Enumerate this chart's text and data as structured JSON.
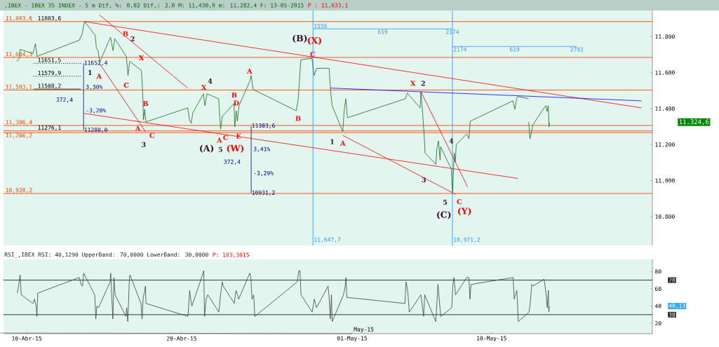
{
  "chart_data": [
    {
      "type": "line",
      "title": ",IBEX - IBEX 35 INDEX - 5 m Dif, %: 0,02 Dif,: 2,0 M: 11,430,9 m: 11,282,4 F: 13-05-2015",
      "subtitle": "P : 11,033,1",
      "xlim": [
        "2015-04-08T12:00",
        "2015-05-20T09:00"
      ],
      "ylim": [
        10640,
        11945
      ],
      "tick_labels": "y",
      "yticks": [
        {
          "value": 10800,
          "label": "10.800"
        },
        {
          "value": 11000,
          "label": "11.000"
        },
        {
          "value": 11200,
          "label": "11.200"
        },
        {
          "value": 11400,
          "label": "11.400"
        },
        {
          "value": 11600,
          "label": "11.600"
        },
        {
          "value": 11800,
          "label": "11.800"
        }
      ],
      "series": [
        {
          "color": "#1b6b1b",
          "x": [
            "2015-04-09T09:00",
            "2015-04-09T12:50",
            "2015-04-09T13:40",
            "2015-04-10T09:30",
            "2015-04-10T13:25",
            "2015-04-10T15:55",
            "2015-04-13T09:15",
            "2015-04-13T13:55",
            "2015-04-13T17:25",
            "2015-04-14T10:00",
            "2015-04-14T11:50",
            "2015-04-14T14:25",
            "2015-04-14T17:00",
            "2015-04-15T09:45",
            "2015-04-15T13:40",
            "2015-04-15T16:15",
            "2015-04-16T10:15",
            "2015-04-16T12:50",
            "2015-04-16T15:30",
            "2015-04-17T09:30",
            "2015-04-17T11:20",
            "2015-04-17T12:50",
            "2015-04-17T14:40",
            "2015-04-17T16:30",
            "2015-04-20T09:30",
            "2015-04-20T12:05",
            "2015-04-20T14:40",
            "2015-04-20T17:15",
            "2015-04-21T09:45",
            "2015-04-21T11:50",
            "2015-04-21T15:10",
            "2015-04-22T09:15",
            "2015-04-22T11:00",
            "2015-04-22T12:20",
            "2015-04-22T14:55",
            "2015-04-23T09:00",
            "2015-04-23T10:15",
            "2015-04-23T12:20",
            "2015-04-23T14:10",
            "2015-04-23T16:45",
            "2015-04-24T09:30",
            "2015-04-24T11:35",
            "2015-04-24T14:40",
            "2015-04-27T09:30",
            "2015-04-27T12:35",
            "2015-04-27T14:25",
            "2015-04-27T16:30",
            "2015-04-28T09:30",
            "2015-04-28T10:30",
            "2015-04-28T13:05",
            "2015-04-28T17:00",
            "2015-04-29T12:20",
            "2015-04-29T14:25",
            "2015-04-29T17:00",
            "2015-04-30T09:30",
            "2015-04-30T11:35",
            "2015-04-30T14:10",
            "2015-04-30T16:45",
            "2015-05-04T10:45",
            "2015-05-04T13:25",
            "2015-05-05T09:15",
            "2015-05-05T10:30",
            "2015-05-05T13:05",
            "2015-05-05T15:10",
            "2015-05-05T17:00",
            "2015-05-06T09:45",
            "2015-05-06T11:20",
            "2015-05-06T13:40",
            "2015-05-06T16:15",
            "2015-05-06T17:00",
            "2015-05-07T09:45",
            "2015-05-07T11:00",
            "2015-05-07T11:50",
            "2015-05-07T12:20",
            "2015-05-07T14:10",
            "2015-05-07T15:45",
            "2015-05-07T17:15",
            "2015-05-08T09:30",
            "2015-05-08T12:50",
            "2015-05-08T14:55",
            "2015-05-11T09:00",
            "2015-05-11T12:05",
            "2015-05-11T14:40",
            "2015-05-11T16:45",
            "2015-05-12T09:15",
            "2015-05-12T09:25",
            "2015-05-12T09:30",
            "2015-05-12T11:20",
            "2015-05-12T13:55",
            "2015-05-12T16:00",
            "2015-05-13T09:15",
            "2015-05-13T11:50",
            "2015-05-13T13:55",
            "2015-05-13T15:45",
            "2015-05-13T17:00",
            "2015-05-13T17:30"
          ],
          "values": [
            11663,
            11682,
            11729,
            11706,
            11761,
            11690,
            11780,
            11816,
            11883.6,
            11808,
            11737,
            11722,
            11659,
            11796,
            11722,
            11788,
            11690,
            11584,
            11663,
            11612,
            11506,
            11337,
            11396,
            11326,
            11404,
            11337,
            11318,
            11377,
            11482,
            11416,
            11482,
            11455,
            11349,
            11286,
            11357,
            11428,
            11298,
            11388,
            11330,
            11416,
            11553,
            11584,
            11506,
            11388,
            11455,
            11561,
            11671,
            11680,
            11659,
            11584,
            11624,
            11624,
            11506,
            11416,
            11271,
            11388,
            11455,
            11349,
            11455,
            11486,
            11404,
            11494,
            11377,
            11271,
            11153,
            11090,
            11181,
            11220,
            11114,
            11188,
            11063,
            10957,
            10934,
            11012,
            11153,
            11102,
            11200,
            11259,
            11232,
            11330,
            11443,
            11396,
            11455,
            11467,
            11455,
            null,
            11326,
            11232,
            11271,
            11310,
            11404,
            11416,
            11384,
            11416,
            11298,
            11324.6
          ]
        },
        {
          "color": "#ff0000",
          "x": [
            "2015-04-13T17:25",
            "2015-05-19T16:15"
          ],
          "values": [
            11883,
            11404
          ]
        },
        {
          "color": "#ff0000",
          "x": [
            "2015-04-13T17:00",
            "2015-05-11T16:30"
          ],
          "values": [
            11373,
            11012
          ]
        },
        {
          "color": "#ff0000",
          "x": [
            "2015-04-14T16:30",
            "2015-04-20T09:15"
          ],
          "values": [
            11921,
            11514
          ]
        },
        {
          "color": "#ff0000",
          "x": [
            "2015-04-14T16:30",
            "2015-04-17T16:00"
          ],
          "values": [
            11651,
            11271
          ]
        },
        {
          "color": "#ff0000",
          "x": [
            "2015-04-30T09:30",
            "2015-05-07T17:00"
          ],
          "values": [
            11251,
            10922
          ]
        },
        {
          "color": "#ff0000",
          "x": [
            "2015-05-05T10:30",
            "2015-05-08T10:45"
          ],
          "values": [
            11494,
            10965
          ]
        },
        {
          "color": "#0000ff",
          "x": [
            "2015-04-29T14:25",
            "2015-05-19T16:00"
          ],
          "values": [
            11514,
            11443
          ]
        },
        {
          "color": "#000080",
          "x": [
            "2015-04-13T16:00",
            "2015-04-13T16:00"
          ],
          "values": [
            11652.4,
            11280.0
          ]
        },
        {
          "color": "#000080",
          "x": [
            "2015-04-24T11:35",
            "2015-04-24T11:35"
          ],
          "values": [
            11303.6,
            10931.2
          ]
        },
        {
          "color": "#3399ff",
          "x": [
            "2015-04-28T11:20",
            "2015-05-07T11:20"
          ],
          "values": [
            11843,
            11843
          ]
        },
        {
          "color": "#3399ff",
          "x": [
            "2015-05-07T11:20",
            "2015-05-15T11:50"
          ],
          "values": [
            11745,
            11745
          ]
        },
        {
          "color": "#000000",
          "line_style": "dotted",
          "x": [
            "2015-04-10T10:15",
            "2015-04-13T12:00"
          ],
          "values": [
            11651.5,
            11651.5
          ]
        },
        {
          "color": "#000000",
          "line_style": "dotted",
          "x": [
            "2015-04-10T10:15",
            "2015-04-13T12:00"
          ],
          "values": [
            11579.9,
            11579.9
          ]
        },
        {
          "color": "#000000",
          "x": [
            "2015-04-10T10:15",
            "2015-04-13T12:00"
          ],
          "values": [
            11508.2,
            11508.2
          ]
        }
      ],
      "ref_lines": [
        {
          "axis": "y",
          "value": 11883.6,
          "label": "11,883,6",
          "color": "#ff4400"
        },
        {
          "axis": "y",
          "value": 11684.3,
          "label": "11,684,3",
          "color": "#ff4400"
        },
        {
          "axis": "y",
          "value": 11503.1,
          "label": "11,503,1",
          "color": "#ff4400"
        },
        {
          "axis": "y",
          "value": 11306.4,
          "label": "11,306,4",
          "color": "#ff4400"
        },
        {
          "axis": "y",
          "value": 11276.1,
          "label": null,
          "color": "#ff4400"
        },
        {
          "axis": "y",
          "value": 11266.2,
          "label": "11,266,2",
          "color": "#ff4400"
        },
        {
          "axis": "y",
          "value": 10928.2,
          "label": "10,928,2",
          "color": "#ff4400"
        },
        {
          "axis": "x",
          "value": "2015-04-28T11:20",
          "label": "11,647,7",
          "color": "#3399ff"
        },
        {
          "axis": "x",
          "value": "2015-05-07T11:20",
          "label": "10,971,2",
          "color": "#3399ff"
        }
      ],
      "annotations": [
        "11.324,6",
        {
          "text": "11883,6",
          "x": "2015-04-10T12:50",
          "y": 11883.6
        },
        {
          "text": "11651,5",
          "x": "2015-04-10T12:50",
          "y": 11651.5
        },
        {
          "text": "11579,9",
          "x": "2015-04-10T12:50",
          "y": 11579.9
        },
        {
          "text": "11508,2",
          "x": "2015-04-10T12:50",
          "y": 11508.2
        },
        {
          "text": "11276,1",
          "x": "2015-04-10T12:50",
          "y": 11276.1
        },
        {
          "text": "11652,4",
          "x": "2015-04-13T16:00",
          "y": 11652.4
        },
        {
          "text": "11280,0",
          "x": "2015-04-13T16:00",
          "y": 11280.0
        },
        "3,30%",
        "-3,20%",
        "372,4",
        {
          "text": "11303,6",
          "x": "2015-04-24T11:35",
          "y": 11303.6
        },
        {
          "text": "10931,2",
          "x": "2015-04-24T11:35",
          "y": 10931.2
        },
        "3,41%",
        "-3,29%",
        "372,4",
        "1556",
        "619",
        "2174",
        "2174",
        "619",
        "2792",
        "B",
        "X",
        "A",
        "C",
        "B",
        "A",
        "C",
        "X",
        "A",
        "(W)",
        "B",
        "D",
        "C",
        "E",
        "A",
        "B",
        "C",
        "(X)",
        "A",
        "X",
        "C",
        "(Y)",
        "2",
        "1",
        "3",
        "4",
        "(A)",
        "5",
        "(B)",
        "1",
        "2",
        "4",
        "3",
        "5",
        "(C)"
      ]
    },
    {
      "type": "line",
      "title": "RSI_,IBEX RSI: 40,1290 UpperBand: 70,0000 LowerBand: 30,0000",
      "subtitle": "P: 183,3015",
      "xlim": [
        "2015-04-08T12:00",
        "2015-05-20T09:00"
      ],
      "ylim": [
        8,
        94
      ],
      "xticks": [
        {
          "value": "2015-04-10",
          "label": "10-Abr-15"
        },
        {
          "value": "2015-04-20",
          "label": "20-Abr-15"
        },
        {
          "value": "2015-05-01",
          "label": "01-May-15"
        },
        {
          "value": "2015-05-10",
          "label": "10-May-15"
        }
      ],
      "yticks": [
        20,
        40,
        60,
        80
      ],
      "series": [
        {
          "color": "#404040",
          "x": [
            "2015-04-09T09:15",
            "2015-04-09T11:20",
            "2015-04-09T13:00",
            "2015-04-09T13:45",
            "2015-04-09T15:30",
            "2015-04-10T09:30",
            "2015-04-10T12:05",
            "2015-04-10T14:30",
            "2015-04-10T15:45",
            "2015-04-10T17:05",
            "2015-04-13T09:25",
            "2015-04-13T12:00",
            "2015-04-13T14:25",
            "2015-04-13T16:10",
            "2015-04-14T09:20",
            "2015-04-14T11:00",
            "2015-04-14T12:40",
            "2015-04-14T15:10",
            "2015-04-15T09:15",
            "2015-04-15T10:05",
            "2015-04-15T11:45",
            "2015-04-15T13:25",
            "2015-04-15T15:05",
            "2015-04-15T16:50",
            "2015-04-16T09:30",
            "2015-04-16T10:45",
            "2015-04-16T12:30",
            "2015-04-16T15:00",
            "2015-04-16T15:55",
            "2015-04-17T09:00",
            "2015-04-17T10:40",
            "2015-04-17T12:25",
            "2015-04-17T14:05",
            "2015-04-17T15:50",
            "2015-04-17T16:40",
            "2015-04-20T09:45",
            "2015-04-20T12:20",
            "2015-04-20T14:00",
            "2015-04-20T15:45",
            "2015-04-21T09:10",
            "2015-04-21T10:10",
            "2015-04-21T11:25",
            "2015-04-21T13:55",
            "2015-04-21T16:25",
            "2015-04-22T09:35",
            "2015-04-22T12:10",
            "2015-04-22T14:55",
            "2015-04-22T16:20",
            "2015-04-23T09:30",
            "2015-04-23T12:05",
            "2015-04-23T14:30",
            "2015-04-23T16:15",
            "2015-04-24T09:25",
            "2015-04-24T11:10",
            "2015-04-24T12:50",
            "2015-04-24T15:30",
            "2015-04-24T17:20",
            "2015-04-27T11:00",
            "2015-04-27T13:30",
            "2015-04-27T15:10",
            "2015-04-27T16:55",
            "2015-04-28T10:05",
            "2015-04-28T13:25",
            "2015-04-28T16:50",
            "2015-04-29T10:45",
            "2015-04-29T12:30",
            "2015-04-29T14:10",
            "2015-04-29T15:55",
            "2015-04-29T17:05",
            "2015-04-30T10:40",
            "2015-04-30T13:15",
            "2015-04-30T14:35",
            "2015-04-30T15:50",
            "2015-05-04T09:45",
            "2015-05-04T11:30",
            "2015-05-04T14:00",
            "2015-05-04T16:35",
            "2015-05-05T10:30",
            "2015-05-05T13:05",
            "2015-05-05T14:45",
            "2015-05-05T16:25",
            "2015-05-06T09:35",
            "2015-05-06T13:00",
            "2015-05-06T15:30",
            "2015-05-06T17:10",
            "2015-05-07T10:20",
            "2015-05-07T12:05",
            "2015-05-07T13:45",
            "2015-05-07T16:15",
            "2015-05-08T09:25",
            "2015-05-08T12:50",
            "2015-05-08T14:25",
            "2015-05-08T16:10",
            "2015-05-11T09:20",
            "2015-05-11T11:00",
            "2015-05-11T12:40",
            "2015-05-11T15:10",
            "2015-05-11T17:25",
            "2015-05-12T10:05",
            "2015-05-12T11:45",
            "2015-05-12T14:15",
            "2015-05-12T16:00",
            "2015-05-13T09:10",
            "2015-05-13T10:50",
            "2015-05-13T12:50",
            "2015-05-13T14:10",
            "2015-05-13T15:55",
            "2015-05-13T16:45",
            "2015-05-13T17:15"
          ],
          "values": [
            55,
            63,
            73,
            76,
            53,
            43,
            48,
            40,
            28,
            55,
            73,
            65,
            63,
            78,
            53,
            25,
            40,
            38,
            68,
            78,
            50,
            25,
            73,
            53,
            28,
            38,
            22,
            71,
            76,
            43,
            25,
            50,
            55,
            63,
            43,
            28,
            58,
            48,
            40,
            78,
            81,
            28,
            48,
            53,
            33,
            53,
            68,
            63,
            43,
            58,
            53,
            48,
            78,
            73,
            48,
            53,
            28,
            68,
            81,
            81,
            53,
            33,
            48,
            38,
            63,
            48,
            25,
            53,
            22,
            53,
            63,
            73,
            50,
            43,
            68,
            58,
            33,
            53,
            38,
            28,
            53,
            22,
            65,
            43,
            28,
            38,
            65,
            73,
            53,
            73,
            73,
            48,
            65,
            73,
            48,
            53,
            58,
            22,
            33,
            43,
            65,
            63,
            71,
            63,
            50,
            38,
            58,
            33,
            40
          ]
        }
      ],
      "ref_lines": [
        {
          "axis": "y",
          "value": 70,
          "label": "70",
          "color": "#202020"
        },
        {
          "axis": "y",
          "value": 30,
          "label": "30",
          "color": "#202020"
        }
      ],
      "annotations": [
        "May-15",
        "40,13"
      ]
    }
  ]
}
